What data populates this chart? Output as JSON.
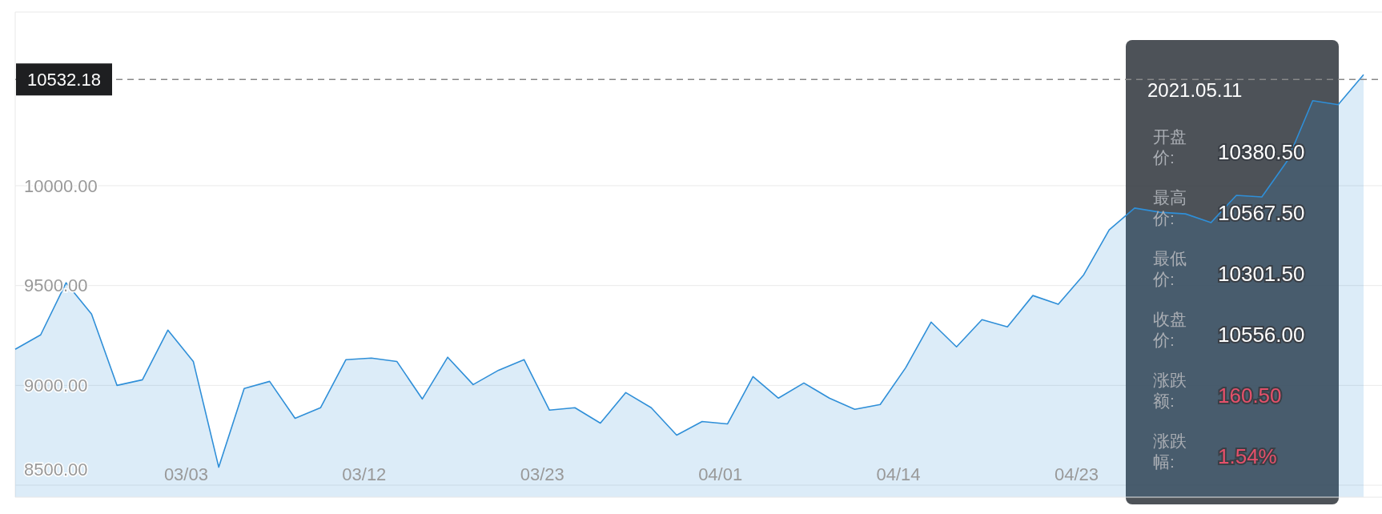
{
  "chart_data": {
    "type": "area",
    "categories": [
      null,
      null,
      null,
      null,
      null,
      null,
      null,
      "03/03",
      null,
      null,
      null,
      null,
      null,
      null,
      "03/12",
      null,
      null,
      null,
      null,
      null,
      null,
      "03/23",
      null,
      null,
      null,
      null,
      null,
      null,
      "04/01",
      null,
      null,
      null,
      null,
      null,
      null,
      "04/14",
      null,
      null,
      null,
      null,
      null,
      null,
      "04/23",
      null,
      null,
      null,
      null,
      null,
      null,
      null,
      null,
      null,
      null,
      null
    ],
    "series": [
      {
        "color": "#2f8fd8",
        "values": [
          9181,
          9253,
          9514,
          9357,
          9000,
          9028,
          9277,
          9120,
          8590,
          8984,
          9020,
          8835,
          8888,
          9129,
          9137,
          9120,
          8932,
          9141,
          9004,
          9076,
          9129,
          8876,
          8888,
          8811,
          8964,
          8888,
          8751,
          8819,
          8807,
          9044,
          8936,
          9012,
          8936,
          8880,
          8904,
          9088,
          9317,
          9193,
          9329,
          9293,
          9450,
          9406,
          9554,
          9779,
          9888,
          9867,
          9859,
          9815,
          9952,
          9944,
          10124,
          10426,
          10406,
          10556
        ]
      }
    ],
    "ylim": [
      8440,
      10870
    ],
    "yticks": [
      {
        "value": 8500,
        "label": "8500.00"
      },
      {
        "value": 9000,
        "label": "9000.00"
      },
      {
        "value": 9500,
        "label": "9500.00"
      },
      {
        "value": 10000,
        "label": "10000.00"
      }
    ],
    "grid": "y",
    "marker": "none",
    "line_style": "solid",
    "ref_lines": [
      {
        "axis": "y",
        "value": 10532.18,
        "label": "10532.18",
        "line_style": "dashed",
        "color": "#888888"
      }
    ],
    "annotations": [
      "2021.05.11",
      "开盘价:",
      "10380.50",
      "最高价:",
      "10567.50",
      "最低价:",
      "10301.50",
      "收盘价:",
      "10556.00",
      "涨跌额:",
      "160.50",
      "涨跌幅:",
      "1.54%"
    ]
  }
}
